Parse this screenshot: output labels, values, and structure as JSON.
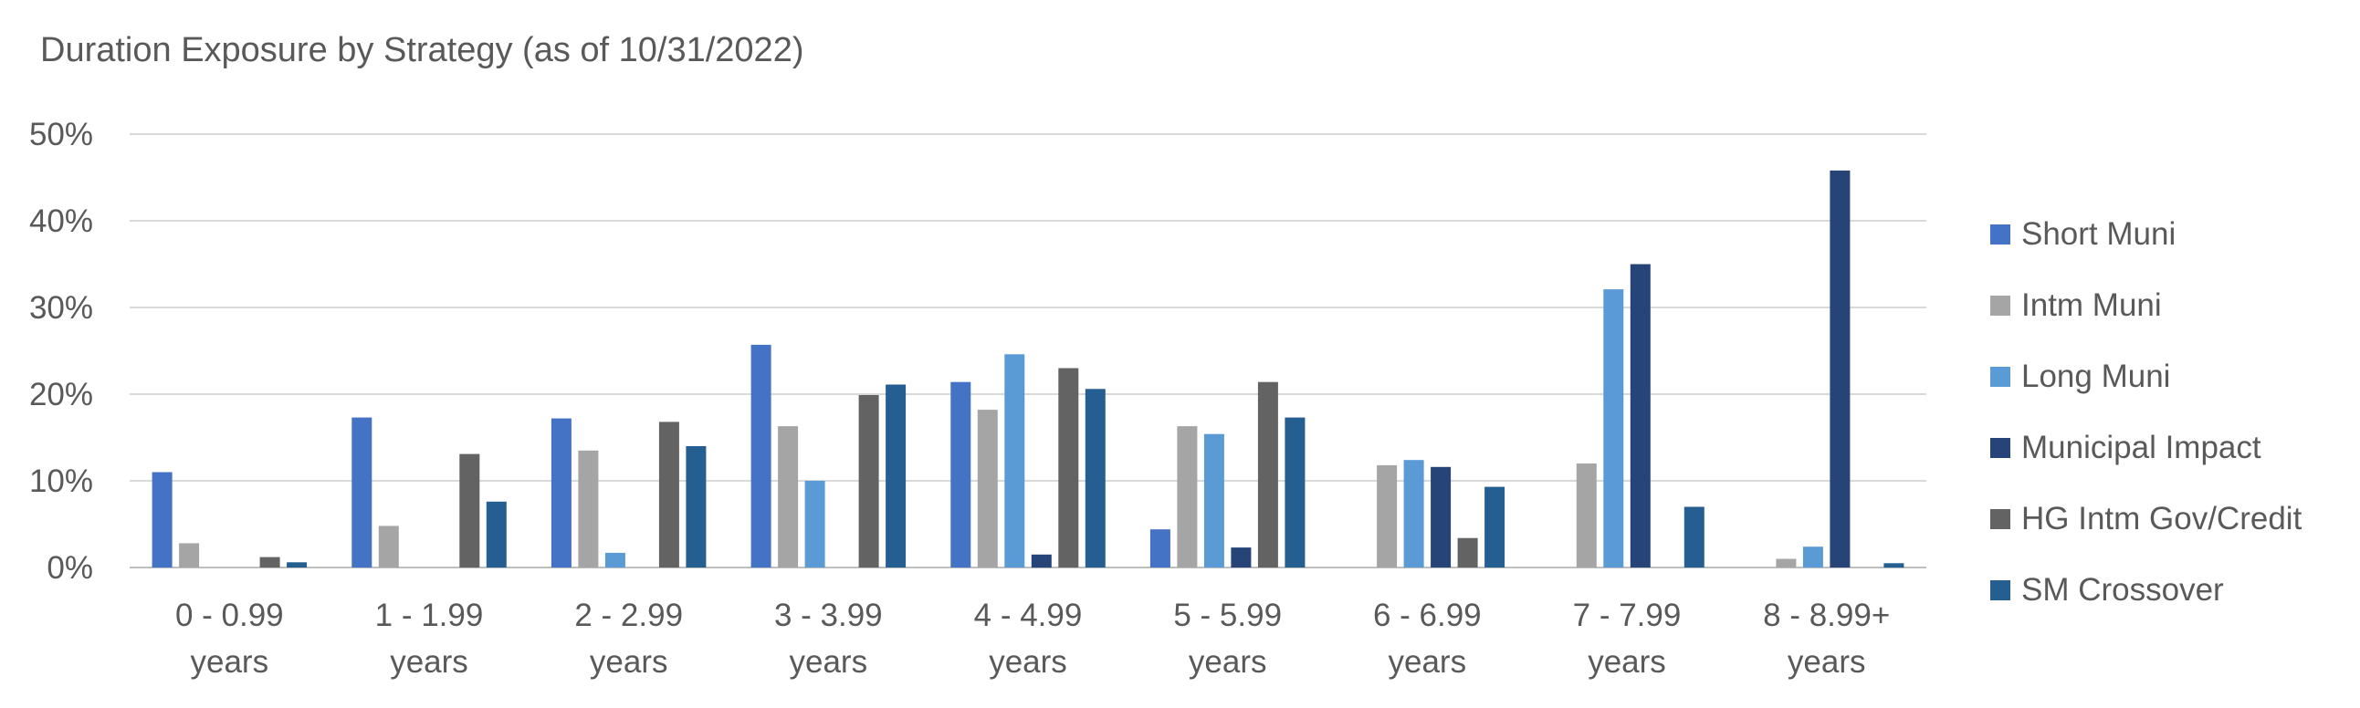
{
  "chart_data": {
    "type": "bar",
    "title": "Duration Exposure by Strategy (as of 10/31/2022)",
    "xlabel": "",
    "ylabel": "",
    "ylim": [
      0,
      50
    ],
    "yticks": [
      "0%",
      "10%",
      "20%",
      "30%",
      "40%",
      "50%"
    ],
    "grid": true,
    "legend_position": "right",
    "categories": [
      [
        "0 - 0.99",
        "years"
      ],
      [
        "1 - 1.99",
        "years"
      ],
      [
        "2 - 2.99",
        "years"
      ],
      [
        "3 - 3.99",
        "years"
      ],
      [
        "4 - 4.99",
        "years"
      ],
      [
        "5 - 5.99",
        "years"
      ],
      [
        "6 - 6.99",
        "years"
      ],
      [
        "7 - 7.99",
        "years"
      ],
      [
        "8 - 8.99+",
        "years"
      ]
    ],
    "series": [
      {
        "name": "Short Muni",
        "color": "#4472C4",
        "values": [
          11.0,
          17.3,
          17.2,
          25.7,
          21.4,
          4.4,
          0,
          0,
          0
        ]
      },
      {
        "name": "Intm Muni",
        "color": "#A5A5A5",
        "values": [
          2.8,
          4.8,
          13.5,
          16.3,
          18.2,
          16.3,
          11.8,
          12.0,
          1.0
        ]
      },
      {
        "name": "Long Muni",
        "color": "#5B9BD5",
        "values": [
          0,
          0,
          1.7,
          10.0,
          24.6,
          15.4,
          12.4,
          32.1,
          2.4
        ]
      },
      {
        "name": "Municipal Impact",
        "color": "#264478",
        "values": [
          0,
          0,
          0,
          0,
          1.5,
          2.3,
          11.6,
          35.0,
          45.8
        ]
      },
      {
        "name": "HG Intm Gov/Credit",
        "color": "#636363",
        "values": [
          1.2,
          13.1,
          16.8,
          19.9,
          23.0,
          21.4,
          3.4,
          0,
          0
        ]
      },
      {
        "name": "SM Crossover",
        "color": "#255E91",
        "values": [
          0.6,
          7.6,
          14.0,
          21.1,
          20.6,
          17.3,
          9.3,
          7.0,
          0.5
        ]
      }
    ]
  }
}
